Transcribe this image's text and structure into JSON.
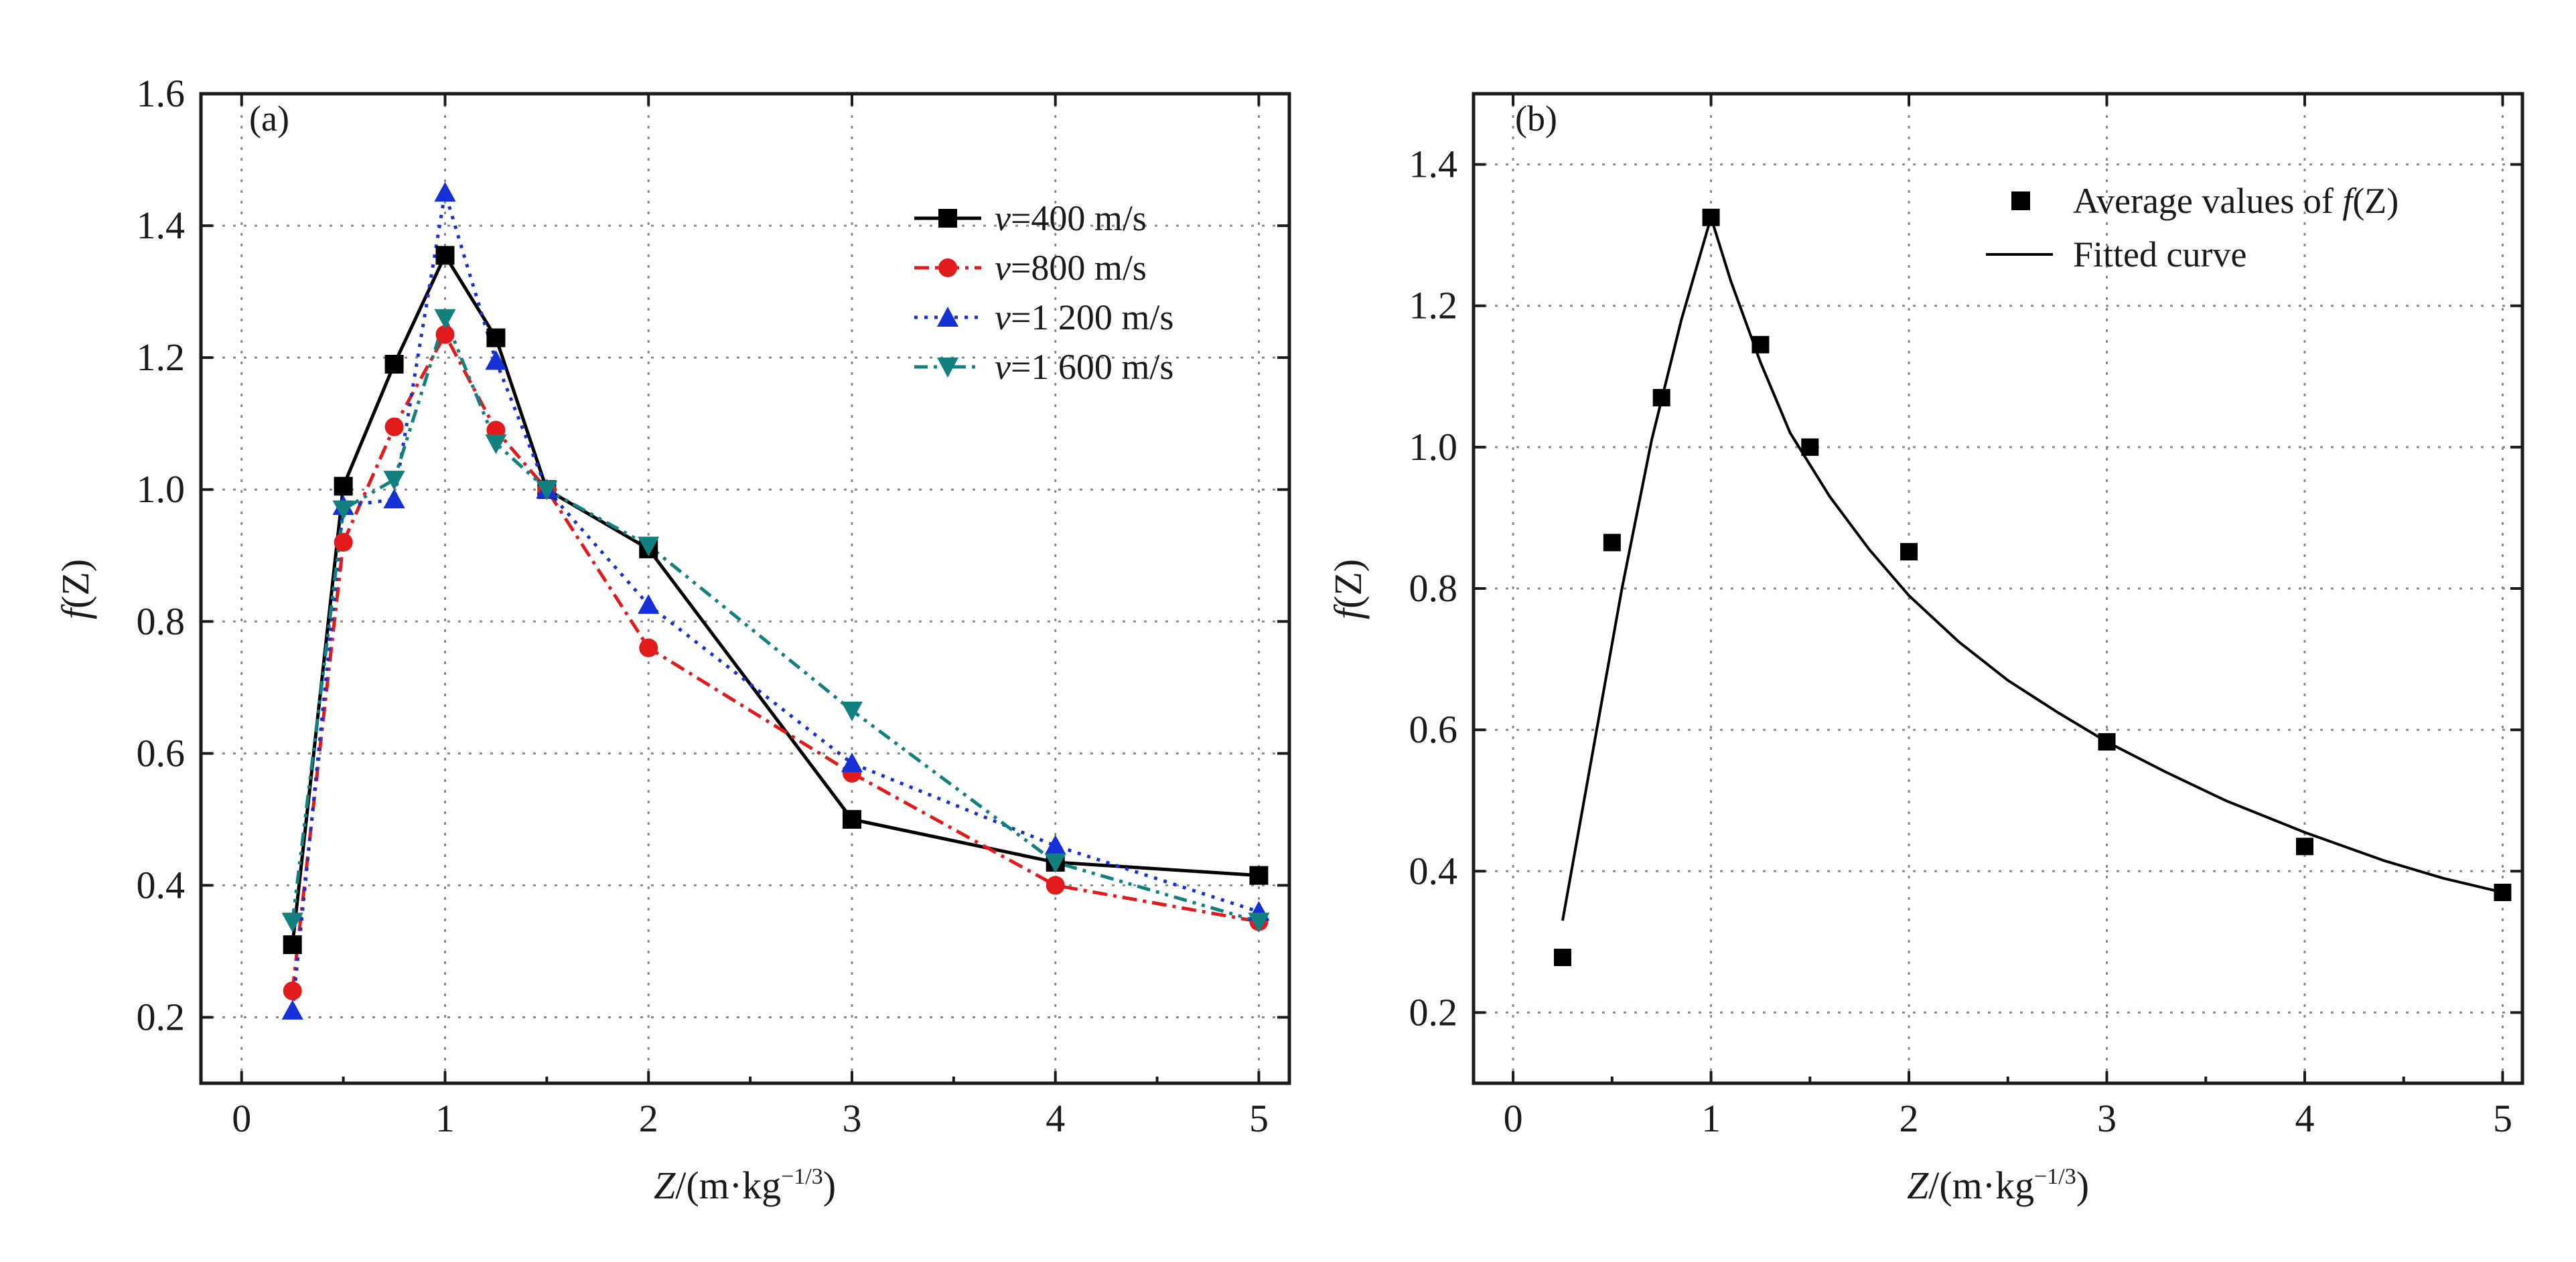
{
  "chart_data": [
    {
      "type": "line",
      "panel_label": "(a)",
      "xlabel_var": "Z",
      "xlabel_unit": "/(m·kg",
      "xlabel_exp": "−1/3",
      "xlabel_close": ")",
      "ylabel_func": "f",
      "ylabel_arg": "(Z)",
      "xlim": [
        -0.2,
        5.15
      ],
      "ylim": [
        0.1,
        1.6
      ],
      "xticks": [
        0,
        1,
        2,
        3,
        4,
        5
      ],
      "xtick_labels": [
        "0",
        "1",
        "2",
        "3",
        "4",
        "5"
      ],
      "yticks": [
        0.2,
        0.4,
        0.6,
        0.8,
        1.0,
        1.2,
        1.4,
        1.6
      ],
      "ytick_labels": [
        "0.2",
        "0.4",
        "0.6",
        "0.8",
        "1.0",
        "1.2",
        "1.4",
        "1.6"
      ],
      "grid": true,
      "legend_position": "top-right",
      "x": [
        0.25,
        0.5,
        0.75,
        1,
        1.25,
        1.5,
        2,
        3,
        4,
        5
      ],
      "series": [
        {
          "name": "v=400 m/s",
          "var": "v",
          "rest": "=400 m/s",
          "color": "#000000",
          "marker": "square",
          "dash": "",
          "values": [
            0.31,
            1.005,
            1.19,
            1.355,
            1.23,
            1.0,
            0.91,
            0.5,
            0.435,
            0.415
          ]
        },
        {
          "name": "v=800 m/s",
          "var": "v",
          "rest": "=800 m/s",
          "color": "#e31a1c",
          "marker": "circle",
          "dash": "22 9 5 9",
          "values": [
            0.24,
            0.92,
            1.095,
            1.235,
            1.09,
            1.0,
            0.76,
            0.57,
            0.4,
            0.345
          ]
        },
        {
          "name": "v=1 200 m/s",
          "var": "v",
          "rest": "=1 200 m/s",
          "color": "#1530d6",
          "marker": "triangle-up",
          "dash": "5 10",
          "values": [
            0.21,
            0.975,
            0.985,
            1.45,
            1.195,
            1.0,
            0.825,
            0.585,
            0.46,
            0.36
          ]
        },
        {
          "name": "v=1 600 m/s",
          "var": "v",
          "rest": "=1 600 m/s",
          "color": "#12807e",
          "marker": "triangle-down",
          "dash": "20 9 5 9 5 9",
          "values": [
            0.345,
            0.97,
            1.015,
            1.26,
            1.07,
            1.0,
            0.915,
            0.665,
            0.435,
            0.345
          ]
        }
      ]
    },
    {
      "type": "scatter",
      "panel_label": "(b)",
      "xlabel_var": "Z",
      "xlabel_unit": "/(m·kg",
      "xlabel_exp": "−1/3",
      "xlabel_close": ")",
      "ylabel_func": "f",
      "ylabel_arg": "(Z)",
      "xlim": [
        -0.2,
        5.1
      ],
      "ylim": [
        0.1,
        1.5
      ],
      "xticks": [
        0,
        1,
        2,
        3,
        4,
        5
      ],
      "xtick_labels": [
        "0",
        "1",
        "2",
        "3",
        "4",
        "5"
      ],
      "yticks": [
        0.2,
        0.4,
        0.6,
        0.8,
        1.0,
        1.2,
        1.4
      ],
      "ytick_labels": [
        "0.2",
        "0.4",
        "0.6",
        "0.8",
        "1.0",
        "1.2",
        "1.4"
      ],
      "grid": true,
      "legend_position": "top-right",
      "points": {
        "name": "Average values of f(Z)",
        "legend_text": "Average values of ",
        "legend_func": "f",
        "legend_arg": "(Z)",
        "marker": "square",
        "color": "#000000",
        "x": [
          0.25,
          0.5,
          0.75,
          1,
          1.25,
          1.5,
          2,
          3,
          4,
          5
        ],
        "y": [
          0.278,
          0.865,
          1.07,
          1.325,
          1.145,
          1.0,
          0.852,
          0.583,
          0.435,
          0.37
        ]
      },
      "fitted_curve": {
        "name": "Fitted curve",
        "color": "#000000",
        "x": [
          0.25,
          0.4,
          0.55,
          0.7,
          0.85,
          1.0,
          1.1,
          1.25,
          1.4,
          1.6,
          1.8,
          2.0,
          2.25,
          2.5,
          2.75,
          3.0,
          3.3,
          3.6,
          4.0,
          4.4,
          4.7,
          5.0
        ],
        "y": [
          0.33,
          0.565,
          0.8,
          1.01,
          1.18,
          1.325,
          1.235,
          1.12,
          1.02,
          0.93,
          0.855,
          0.79,
          0.725,
          0.67,
          0.625,
          0.583,
          0.54,
          0.5,
          0.455,
          0.415,
          0.39,
          0.37
        ]
      }
    }
  ]
}
